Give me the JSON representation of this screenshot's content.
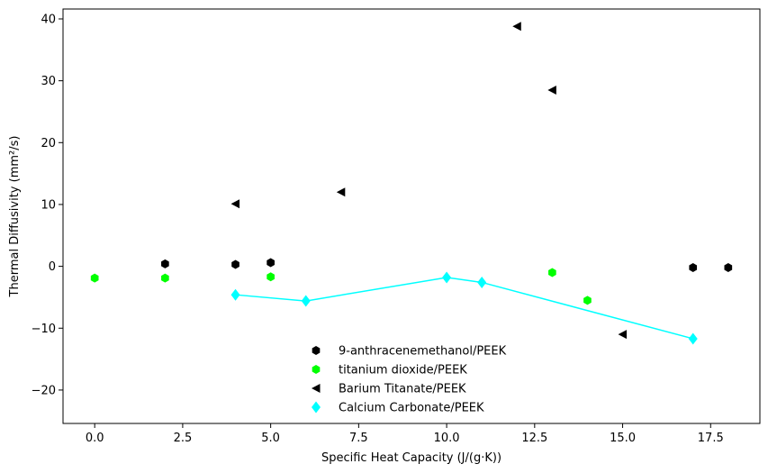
{
  "chart_data": {
    "type": "scatter",
    "xlabel": "Specific Heat Capacity (J/(g·K))",
    "ylabel": "Thermal Diffusivity (mm²/s)",
    "xlim": [
      -0.9,
      18.9
    ],
    "ylim": [
      -25.4,
      41.6
    ],
    "xticks": [
      0,
      2.5,
      5,
      7.5,
      10,
      12.5,
      15,
      17.5
    ],
    "xtick_labels": [
      "0.0",
      "2.5",
      "5.0",
      "7.5",
      "10.0",
      "12.5",
      "15.0",
      "17.5"
    ],
    "yticks": [
      -20,
      -10,
      0,
      10,
      20,
      30,
      40
    ],
    "ytick_labels": [
      "−20",
      "−10",
      "0",
      "10",
      "20",
      "30",
      "40"
    ],
    "grid": false,
    "legend_position": "lower-center",
    "series": [
      {
        "name": "9-anthracenemethanol/PEEK",
        "marker": "hexagon",
        "color": "#000000",
        "line": false,
        "x": [
          2,
          4,
          5,
          17,
          18
        ],
        "y": [
          0.4,
          0.3,
          0.6,
          -0.2,
          -0.2
        ]
      },
      {
        "name": "titanium dioxide/PEEK",
        "marker": "hexagon",
        "color": "#00ff00",
        "line": false,
        "x": [
          0,
          2,
          5,
          13,
          14
        ],
        "y": [
          -1.9,
          -1.9,
          -1.7,
          -1.0,
          -5.5
        ]
      },
      {
        "name": "Barium Titanate/PEEK",
        "marker": "triangle-left",
        "color": "#000000",
        "line": false,
        "x": [
          4,
          7,
          12,
          13,
          15
        ],
        "y": [
          10.1,
          12.0,
          38.8,
          28.5,
          -11.0
        ]
      },
      {
        "name": "Calcium Carbonate/PEEK",
        "marker": "diamond",
        "color": "#00ffff",
        "line": true,
        "x": [
          4,
          6,
          10,
          11,
          17
        ],
        "y": [
          -4.6,
          -5.6,
          -1.8,
          -2.6,
          -11.7
        ]
      }
    ]
  }
}
